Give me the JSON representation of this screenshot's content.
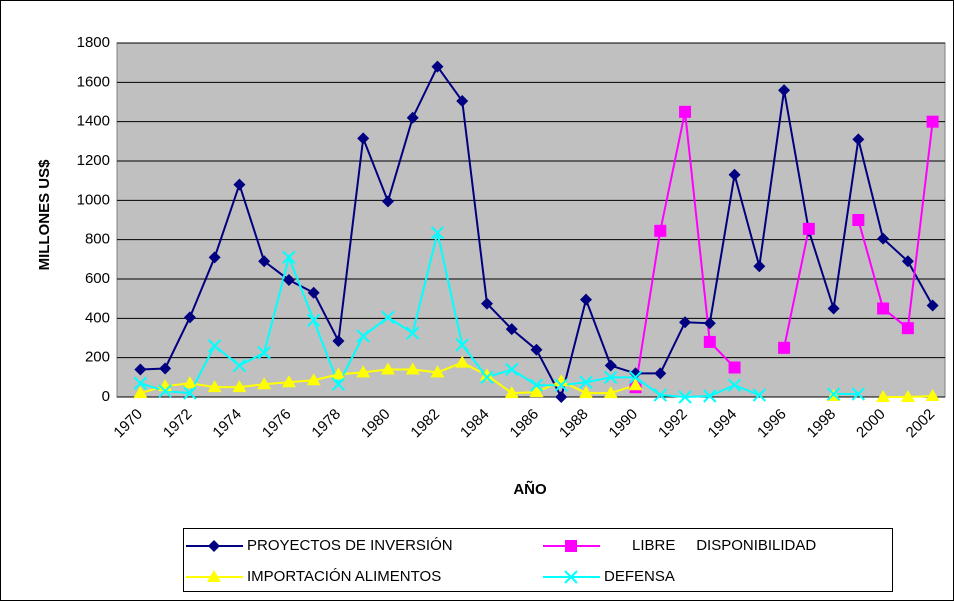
{
  "chart_data": {
    "type": "line",
    "x_label": "AÑO",
    "y_label": "MILLONES US$",
    "categories": [
      "1970",
      null,
      "1972",
      null,
      "1974",
      null,
      "1976",
      null,
      "1978",
      null,
      "1980",
      null,
      "1982",
      null,
      "1984",
      null,
      "1986",
      null,
      "1988",
      null,
      "1990",
      null,
      "1992",
      null,
      "1994",
      null,
      "1996",
      null,
      "1998",
      null,
      "2000",
      null,
      "2002"
    ],
    "series": [
      {
        "name": "PROYECTOS DE INVERSIÓN",
        "color": "#000080",
        "marker": "diamond",
        "values": [
          140,
          145,
          405,
          710,
          1080,
          690,
          595,
          530,
          285,
          1315,
          995,
          1420,
          1680,
          1505,
          475,
          345,
          240,
          0,
          495,
          160,
          120,
          120,
          380,
          375,
          1130,
          665,
          1560,
          845,
          450,
          1310,
          805,
          690,
          465
        ]
      },
      {
        "name": "LIBRE     DISPONIBILIDAD",
        "color": "#ff00ff",
        "marker": "square",
        "values": [
          null,
          null,
          null,
          null,
          null,
          null,
          null,
          null,
          null,
          null,
          null,
          null,
          null,
          null,
          null,
          null,
          null,
          null,
          null,
          null,
          50,
          845,
          1450,
          280,
          150,
          null,
          250,
          855,
          null,
          900,
          450,
          350,
          1400
        ]
      },
      {
        "name": "IMPORTACIÓN ALIMENTOS",
        "color": "#ffff00",
        "marker": "triangle",
        "values": [
          20,
          55,
          70,
          50,
          50,
          65,
          75,
          85,
          115,
          125,
          140,
          140,
          125,
          175,
          110,
          20,
          25,
          80,
          20,
          20,
          60,
          null,
          null,
          null,
          null,
          null,
          null,
          null,
          5,
          null,
          0,
          0,
          5
        ]
      },
      {
        "name": "DEFENSA",
        "color": "#00ffff",
        "marker": "x",
        "values": [
          70,
          30,
          20,
          260,
          160,
          225,
          710,
          390,
          65,
          310,
          405,
          325,
          835,
          265,
          100,
          140,
          60,
          60,
          75,
          100,
          100,
          10,
          0,
          5,
          60,
          10,
          null,
          null,
          15,
          15,
          null,
          null,
          null
        ]
      }
    ],
    "ylim": [
      0,
      1800
    ],
    "yticks": [
      0,
      200,
      400,
      600,
      800,
      1000,
      1200,
      1400,
      1600,
      1800
    ],
    "grid": true,
    "legend": "bottom"
  }
}
